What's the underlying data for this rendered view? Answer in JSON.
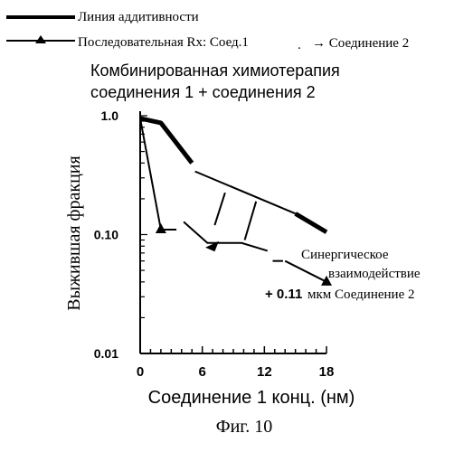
{
  "legend": {
    "additivity_label": "Линия аддитивности",
    "sequential_label": "Последовательная Rx: Соед.1",
    "arrow_label": "→ Соединение 2"
  },
  "title": {
    "line1": "Комбинированная химиотерапия",
    "line2": "соединения 1 + соединения 2"
  },
  "figure_caption": "Фиг. 10",
  "annotations": {
    "synergy_line1": "Синергическое",
    "synergy_line2": "взаимодействие",
    "concentration_value": "+ 0.11",
    "concentration_text": "мкм Соединение 2"
  },
  "chart_data": {
    "type": "line",
    "title": "Комбинированная химиотерапия соединения 1 + соединения 2",
    "xlabel": "Соединение 1 конц. (нм)",
    "ylabel": "Выжившая фракция",
    "xlim": [
      0,
      18
    ],
    "ylim": [
      0.01,
      1.0
    ],
    "yscale": "log",
    "x_ticks": [
      0,
      6,
      12,
      18
    ],
    "y_ticks": [
      0.01,
      0.1,
      1.0
    ],
    "x_tick_labels": [
      "0",
      "6",
      "12",
      "18"
    ],
    "y_tick_labels": [
      "0.01",
      "0.10",
      "1.0"
    ],
    "grid": false,
    "legend_position": "top-left",
    "series": [
      {
        "name": "Линия аддитивности",
        "style": "thick",
        "x": [
          0,
          2,
          5
        ],
        "y": [
          0.95,
          0.87,
          0.4
        ]
      },
      {
        "name": "Линия аддитивности",
        "style": "thick-tail",
        "x": [
          15,
          18
        ],
        "y": [
          0.15,
          0.105
        ]
      },
      {
        "name": "Последовательная Rx: Соед.1",
        "style": "triangle",
        "x": [
          0,
          2
        ],
        "y": [
          0.95,
          0.11
        ]
      },
      {
        "name": "Последовательная Rx: Соед.1",
        "style": "triangle",
        "x": [
          14,
          18
        ],
        "y": [
          0.06,
          0.04
        ]
      }
    ]
  }
}
